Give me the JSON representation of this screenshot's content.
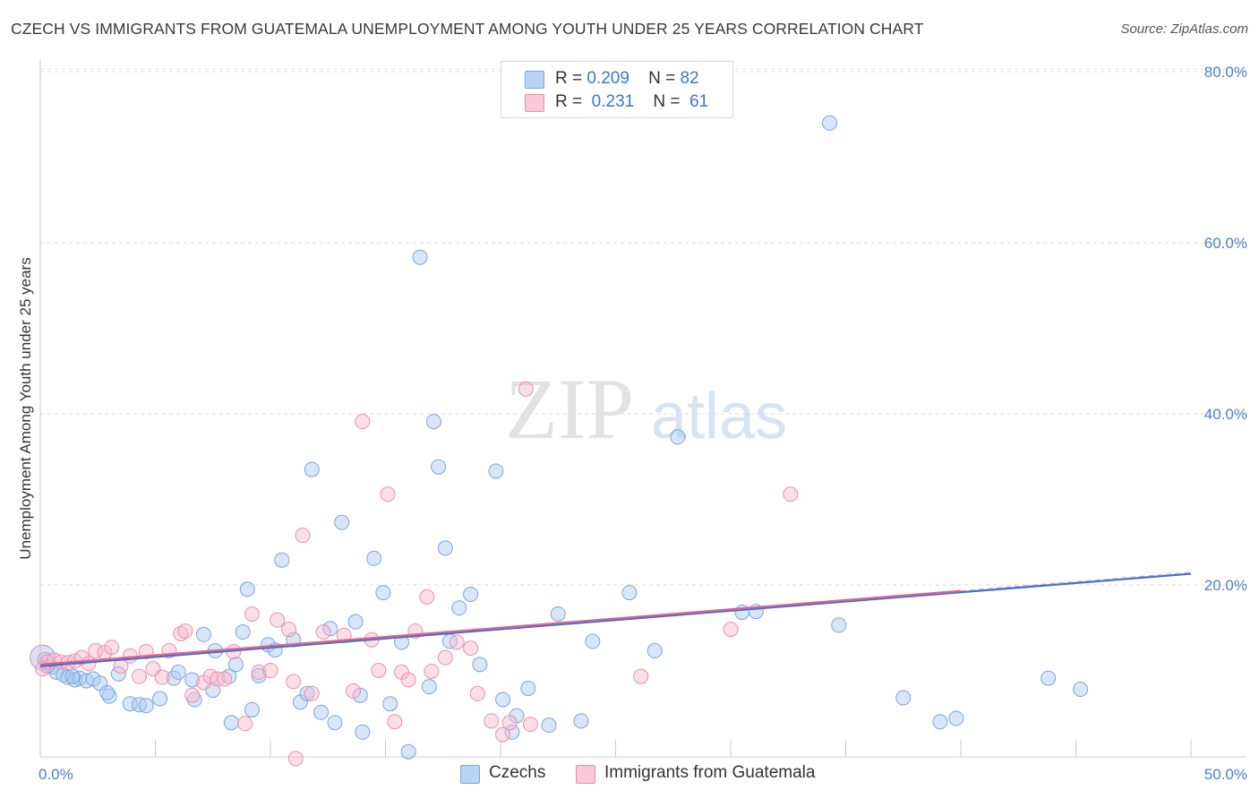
{
  "chart_data": {
    "type": "scatter",
    "title": "CZECH VS IMMIGRANTS FROM GUATEMALA UNEMPLOYMENT AMONG YOUTH UNDER 25 YEARS CORRELATION CHART",
    "source": "Source: ZipAtlas.com",
    "ylabel": "Unemployment Among Youth under 25 years",
    "xlabel": "",
    "xlim": [
      0,
      50
    ],
    "ylim": [
      0,
      80
    ],
    "x_tick_labels": [
      "0.0%",
      "50.0%"
    ],
    "y_ticks": [
      20,
      40,
      60,
      80
    ],
    "y_tick_labels": [
      "20.0%",
      "40.0%",
      "60.0%",
      "80.0%"
    ],
    "grid": "horizontal dashed",
    "watermark": "ZIPatlas",
    "legend": {
      "position": "top-center",
      "rows": [
        {
          "r_label": "R =",
          "r_value": "0.209",
          "n_label": "N =",
          "n_value": "82"
        },
        {
          "r_label": "R =",
          "r_value": "0.231",
          "n_label": "N =",
          "n_value": "61"
        }
      ]
    },
    "series": [
      {
        "name": "Czechs",
        "color": "#a9c8f0",
        "edge": "#7aa7e0",
        "line_color": "#3b73d1",
        "trend": {
          "x": [
            0,
            50
          ],
          "y": [
            10.5,
            21.3
          ]
        },
        "points": [
          [
            0.2,
            11.3
          ],
          [
            0.5,
            10.4
          ],
          [
            0.7,
            9.8
          ],
          [
            1.0,
            9.5
          ],
          [
            1.2,
            9.2
          ],
          [
            1.5,
            8.9
          ],
          [
            1.7,
            9.1
          ],
          [
            2.0,
            8.8
          ],
          [
            2.3,
            9.0
          ],
          [
            2.6,
            8.5
          ],
          [
            3.0,
            7.0
          ],
          [
            3.4,
            9.6
          ],
          [
            3.9,
            6.1
          ],
          [
            4.3,
            6.0
          ],
          [
            4.6,
            5.9
          ],
          [
            5.2,
            6.7
          ],
          [
            5.8,
            9.1
          ],
          [
            6.0,
            9.8
          ],
          [
            6.6,
            8.9
          ],
          [
            6.7,
            6.6
          ],
          [
            7.1,
            14.2
          ],
          [
            7.5,
            7.7
          ],
          [
            7.6,
            12.3
          ],
          [
            8.2,
            9.3
          ],
          [
            8.3,
            3.9
          ],
          [
            8.5,
            10.7
          ],
          [
            8.8,
            14.5
          ],
          [
            9.0,
            19.5
          ],
          [
            9.2,
            5.4
          ],
          [
            9.5,
            9.4
          ],
          [
            9.9,
            13.0
          ],
          [
            10.2,
            12.4
          ],
          [
            10.5,
            22.9
          ],
          [
            11.0,
            13.6
          ],
          [
            11.3,
            6.3
          ],
          [
            11.6,
            7.3
          ],
          [
            11.8,
            33.5
          ],
          [
            12.2,
            5.1
          ],
          [
            12.6,
            14.9
          ],
          [
            12.8,
            3.9
          ],
          [
            13.1,
            27.3
          ],
          [
            13.7,
            15.7
          ],
          [
            13.9,
            7.1
          ],
          [
            14.0,
            2.8
          ],
          [
            14.5,
            23.1
          ],
          [
            14.9,
            19.1
          ],
          [
            15.2,
            6.1
          ],
          [
            15.7,
            13.3
          ],
          [
            16.0,
            0.5
          ],
          [
            16.5,
            58.3
          ],
          [
            16.9,
            8.1
          ],
          [
            17.1,
            39.1
          ],
          [
            17.3,
            33.8
          ],
          [
            17.6,
            24.3
          ],
          [
            17.8,
            13.4
          ],
          [
            18.2,
            17.3
          ],
          [
            18.7,
            18.9
          ],
          [
            19.1,
            10.7
          ],
          [
            19.8,
            33.3
          ],
          [
            20.1,
            6.6
          ],
          [
            20.5,
            2.8
          ],
          [
            20.7,
            4.7
          ],
          [
            21.2,
            7.9
          ],
          [
            22.1,
            3.6
          ],
          [
            22.5,
            16.6
          ],
          [
            23.5,
            4.1
          ],
          [
            24.0,
            13.4
          ],
          [
            25.6,
            19.1
          ],
          [
            26.7,
            12.3
          ],
          [
            27.7,
            37.3
          ],
          [
            30.5,
            16.8
          ],
          [
            31.1,
            16.9
          ],
          [
            34.3,
            74.0
          ],
          [
            34.7,
            15.3
          ],
          [
            37.5,
            6.8
          ],
          [
            39.1,
            4.0
          ],
          [
            39.8,
            4.4
          ],
          [
            43.8,
            9.1
          ],
          [
            45.2,
            7.8
          ],
          [
            0.3,
            10.5
          ],
          [
            1.4,
            9.3
          ],
          [
            2.9,
            7.4
          ]
        ]
      },
      {
        "name": "Immigrants from Guatemala",
        "color": "#f7b9cb",
        "edge": "#ec8fad",
        "line_color": "#e0608a",
        "trend": {
          "x": [
            0,
            40
          ],
          "y": [
            10.7,
            19.3
          ]
        },
        "points": [
          [
            0.3,
            11.0
          ],
          [
            0.6,
            11.2
          ],
          [
            0.9,
            11.0
          ],
          [
            1.2,
            10.9
          ],
          [
            1.5,
            11.1
          ],
          [
            1.8,
            11.5
          ],
          [
            2.1,
            10.8
          ],
          [
            2.4,
            12.3
          ],
          [
            2.8,
            12.1
          ],
          [
            3.1,
            12.7
          ],
          [
            3.5,
            10.5
          ],
          [
            3.9,
            11.7
          ],
          [
            4.3,
            9.3
          ],
          [
            4.6,
            12.2
          ],
          [
            4.9,
            10.2
          ],
          [
            5.3,
            9.2
          ],
          [
            5.6,
            12.3
          ],
          [
            6.1,
            14.3
          ],
          [
            6.3,
            14.6
          ],
          [
            6.6,
            7.1
          ],
          [
            7.1,
            8.6
          ],
          [
            7.4,
            9.3
          ],
          [
            7.7,
            9.0
          ],
          [
            8.0,
            9.0
          ],
          [
            8.4,
            12.2
          ],
          [
            8.9,
            3.8
          ],
          [
            9.2,
            16.6
          ],
          [
            9.5,
            9.8
          ],
          [
            10.0,
            10.0
          ],
          [
            10.3,
            15.9
          ],
          [
            10.8,
            14.8
          ],
          [
            11.0,
            8.7
          ],
          [
            11.1,
            -0.3
          ],
          [
            11.4,
            25.8
          ],
          [
            11.8,
            7.3
          ],
          [
            12.3,
            14.5
          ],
          [
            13.2,
            14.1
          ],
          [
            13.6,
            7.6
          ],
          [
            14.0,
            39.1
          ],
          [
            14.4,
            13.6
          ],
          [
            14.7,
            10.0
          ],
          [
            15.1,
            30.6
          ],
          [
            15.4,
            4.0
          ],
          [
            15.7,
            9.8
          ],
          [
            16.0,
            8.9
          ],
          [
            16.3,
            14.6
          ],
          [
            16.8,
            18.6
          ],
          [
            17.0,
            9.9
          ],
          [
            17.6,
            11.5
          ],
          [
            18.1,
            13.3
          ],
          [
            18.7,
            12.6
          ],
          [
            19.0,
            7.3
          ],
          [
            19.6,
            4.1
          ],
          [
            20.1,
            2.5
          ],
          [
            20.4,
            3.9
          ],
          [
            21.1,
            42.9
          ],
          [
            21.3,
            3.7
          ],
          [
            26.1,
            9.3
          ],
          [
            30.0,
            14.8
          ],
          [
            32.6,
            30.6
          ],
          [
            0.1,
            10.2
          ]
        ]
      }
    ]
  },
  "bottom_legend": [
    {
      "label": "Czechs"
    },
    {
      "label": "Immigrants from Guatemala"
    }
  ]
}
